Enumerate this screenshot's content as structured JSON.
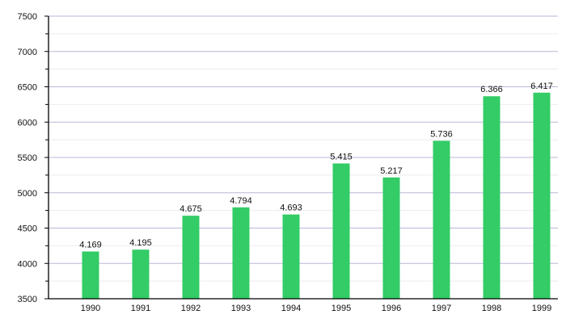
{
  "chart_data": {
    "type": "bar",
    "title": "",
    "xlabel": "",
    "ylabel": "",
    "categories": [
      "1990",
      "1991",
      "1992",
      "1993",
      "1994",
      "1995",
      "1996",
      "1997",
      "1998",
      "1999"
    ],
    "values": [
      4169,
      4195,
      4675,
      4794,
      4693,
      5415,
      5217,
      5736,
      6366,
      6417
    ],
    "data_labels": [
      "4.169",
      "4.195",
      "4.675",
      "4.794",
      "4.693",
      "5.415",
      "5.217",
      "5.736",
      "6.366",
      "6.417"
    ],
    "ylim": [
      3500,
      7500
    ],
    "yticks": [
      "3500",
      "4000",
      "4500",
      "5000",
      "5500",
      "6000",
      "6500",
      "7000",
      "7500"
    ],
    "grid": true,
    "bar_color": "#33cc66",
    "grid_color": "#b8b8d8"
  }
}
